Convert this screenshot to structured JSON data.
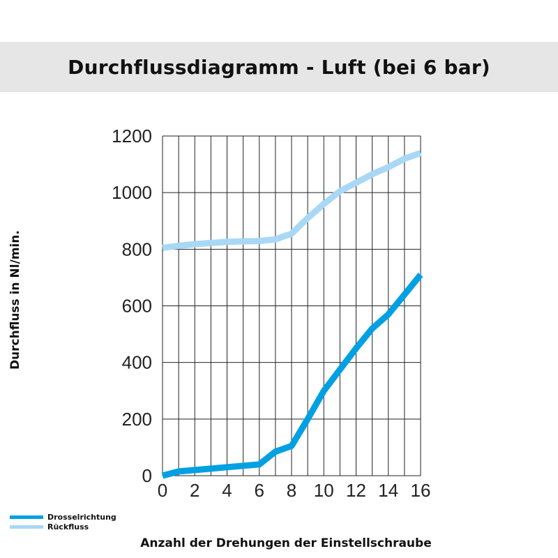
{
  "chart_data": {
    "type": "line",
    "title": "Durchflussdiagramm - Luft (bei 6 bar)",
    "xlabel": "Anzahl der Drehungen der Einstellschraube",
    "ylabel": "Durchfluss in Nl/min.",
    "xlim": [
      0,
      16
    ],
    "ylim": [
      0,
      1200
    ],
    "xticks": [
      0,
      2,
      4,
      6,
      8,
      10,
      12,
      14,
      16
    ],
    "yticks": [
      0,
      200,
      400,
      600,
      800,
      1000,
      1200
    ],
    "grid": true,
    "legend_position": "bottom-left",
    "series": [
      {
        "name": "Drosselrichtung",
        "color": "#00a0e3",
        "x": [
          0,
          1,
          2,
          3,
          4,
          5,
          6,
          7,
          8,
          9,
          10,
          11,
          12,
          13,
          14,
          15,
          16
        ],
        "y": [
          0,
          15,
          20,
          25,
          30,
          35,
          40,
          85,
          105,
          200,
          300,
          375,
          450,
          520,
          570,
          640,
          710
        ]
      },
      {
        "name": "Rückfluss",
        "color": "#a8d8f5",
        "x": [
          0,
          1,
          2,
          3,
          4,
          5,
          6,
          7,
          8,
          9,
          10,
          11,
          12,
          13,
          14,
          15,
          16
        ],
        "y": [
          805,
          812,
          818,
          822,
          826,
          828,
          829,
          835,
          855,
          910,
          960,
          1005,
          1035,
          1065,
          1090,
          1120,
          1140
        ]
      }
    ]
  }
}
